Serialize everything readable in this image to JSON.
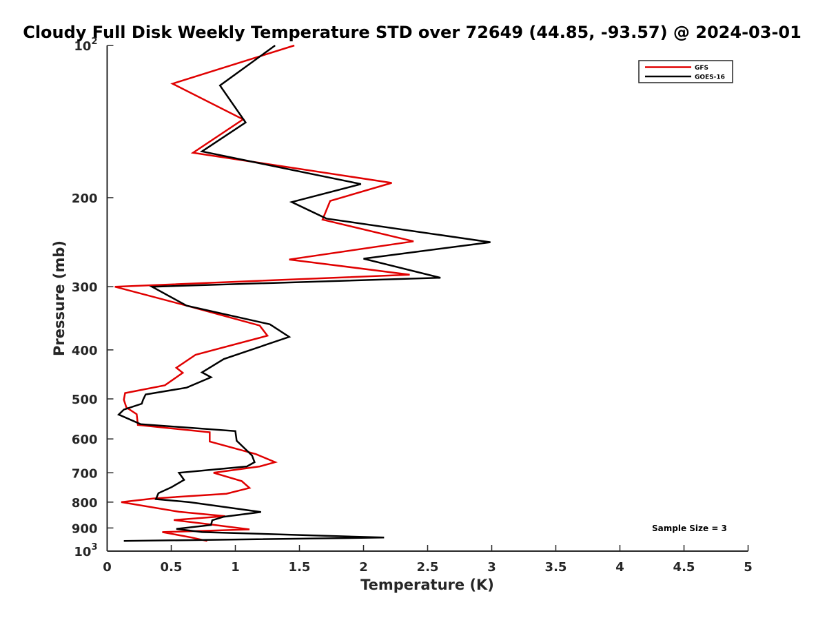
{
  "chart_data": {
    "type": "line",
    "title": "Cloudy Full Disk Weekly Temperature STD over 72649 (44.85, -93.57) @ 2024-03-01",
    "xlabel": "Temperature (K)",
    "ylabel": "Pressure (mb)",
    "xlim": [
      0,
      5
    ],
    "ylim": [
      1000,
      100
    ],
    "yscale": "log",
    "y_reversed": true,
    "grid": false,
    "legend_position": "top-right",
    "xticks": [
      0,
      0.5,
      1,
      1.5,
      2,
      2.5,
      3,
      3.5,
      4,
      4.5,
      5
    ],
    "xtick_labels": [
      "0",
      "0.5",
      "1",
      "1.5",
      "2",
      "2.5",
      "3",
      "3.5",
      "4",
      "4.5",
      "5"
    ],
    "yticks": [
      100,
      200,
      300,
      400,
      500,
      600,
      700,
      800,
      900,
      1000
    ],
    "ytick_labels": [
      {
        "base": "10",
        "exp": "2"
      },
      {
        "base": "200",
        "exp": ""
      },
      {
        "base": "300",
        "exp": ""
      },
      {
        "base": "400",
        "exp": ""
      },
      {
        "base": "500",
        "exp": ""
      },
      {
        "base": "600",
        "exp": ""
      },
      {
        "base": "700",
        "exp": ""
      },
      {
        "base": "800",
        "exp": ""
      },
      {
        "base": "900",
        "exp": ""
      },
      {
        "base": "10",
        "exp": "3"
      }
    ],
    "annotation": "Sample Size = 3",
    "series": [
      {
        "name": "GFS",
        "color": "#e00000",
        "points": [
          [
            1.46,
            100
          ],
          [
            0.51,
            119
          ],
          [
            1.06,
            140
          ],
          [
            0.67,
            163
          ],
          [
            2.22,
            187
          ],
          [
            1.74,
            203
          ],
          [
            1.68,
            221
          ],
          [
            2.39,
            244
          ],
          [
            1.42,
            265
          ],
          [
            2.36,
            284
          ],
          [
            0.06,
            300
          ],
          [
            0.6,
            326
          ],
          [
            1.19,
            358
          ],
          [
            1.25,
            375
          ],
          [
            0.69,
            409
          ],
          [
            0.54,
            434
          ],
          [
            0.59,
            444
          ],
          [
            0.45,
            470
          ],
          [
            0.14,
            487
          ],
          [
            0.13,
            502
          ],
          [
            0.15,
            520
          ],
          [
            0.23,
            536
          ],
          [
            0.24,
            563
          ],
          [
            0.8,
            582
          ],
          [
            0.8,
            607
          ],
          [
            1.16,
            643
          ],
          [
            1.31,
            667
          ],
          [
            1.19,
            680
          ],
          [
            0.83,
            700
          ],
          [
            1.05,
            727
          ],
          [
            1.11,
            750
          ],
          [
            0.93,
            770
          ],
          [
            0.36,
            787
          ],
          [
            0.11,
            800
          ],
          [
            0.56,
            836
          ],
          [
            0.92,
            853
          ],
          [
            0.52,
            868
          ],
          [
            0.81,
            886
          ],
          [
            1.11,
            906
          ],
          [
            0.43,
            917
          ],
          [
            0.66,
            940
          ],
          [
            0.78,
            955
          ]
        ]
      },
      {
        "name": "GOES-16",
        "color": "#000000",
        "points": [
          [
            1.31,
            100
          ],
          [
            0.88,
            120
          ],
          [
            1.08,
            142
          ],
          [
            0.74,
            162
          ],
          [
            1.98,
            188
          ],
          [
            1.44,
            204
          ],
          [
            1.71,
            220
          ],
          [
            2.99,
            245
          ],
          [
            2.0,
            264
          ],
          [
            2.6,
            288
          ],
          [
            0.35,
            300
          ],
          [
            0.62,
            327
          ],
          [
            1.27,
            356
          ],
          [
            1.42,
            377
          ],
          [
            0.91,
            417
          ],
          [
            0.74,
            443
          ],
          [
            0.81,
            453
          ],
          [
            0.62,
            475
          ],
          [
            0.3,
            490
          ],
          [
            0.28,
            502
          ],
          [
            0.27,
            511
          ],
          [
            0.13,
            525
          ],
          [
            0.09,
            537
          ],
          [
            0.26,
            561
          ],
          [
            1.0,
            579
          ],
          [
            1.01,
            605
          ],
          [
            1.13,
            647
          ],
          [
            1.15,
            667
          ],
          [
            1.09,
            680
          ],
          [
            0.56,
            700
          ],
          [
            0.6,
            723
          ],
          [
            0.5,
            748
          ],
          [
            0.4,
            768
          ],
          [
            0.38,
            789
          ],
          [
            0.64,
            800
          ],
          [
            1.2,
            837
          ],
          [
            0.91,
            855
          ],
          [
            0.82,
            869
          ],
          [
            0.81,
            888
          ],
          [
            0.54,
            904
          ],
          [
            0.74,
            917
          ],
          [
            2.16,
            940
          ],
          [
            0.13,
            955
          ]
        ]
      }
    ]
  }
}
